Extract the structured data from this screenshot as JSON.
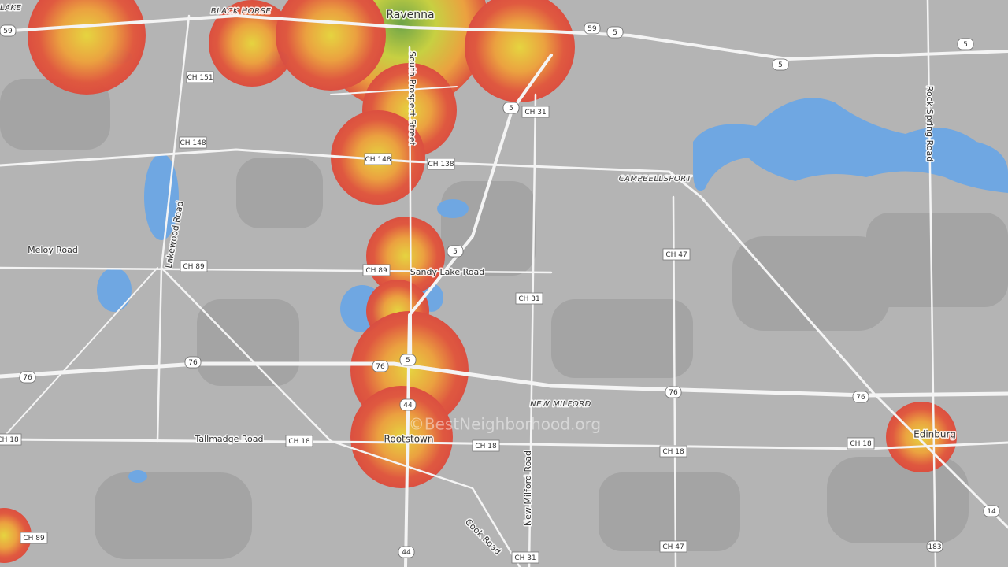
{
  "places": [
    "LAKE",
    "BLACK HORSE",
    "Ravenna",
    "CAMPBELLSPORT",
    "NEW MILFORD",
    "Rootstown",
    "Edinburg"
  ],
  "roads": [
    "South Prospect Street",
    "Rock Spring Road",
    "Meloy Road",
    "Lakewood Road",
    "Sandy Lake Road",
    "Tallmadge Road",
    "New Milford Road",
    "Cook Road"
  ],
  "county_roads": [
    "CH 151",
    "CH 148",
    "CH 148",
    "CH 138",
    "CH 31",
    "CH 89",
    "CH 89",
    "CH 47",
    "CH 31",
    "CH 18",
    "CH 18",
    "CH 18",
    "CH 18",
    "CH 18",
    "CH 47",
    "CH 31",
    "CH 89"
  ],
  "shields": [
    "59",
    "59",
    "5",
    "5",
    "5",
    "5",
    "5",
    "5",
    "76",
    "76",
    "76",
    "76",
    "76",
    "44",
    "44",
    "14",
    "183"
  ],
  "watermark": "©BestNeighborhood.org"
}
